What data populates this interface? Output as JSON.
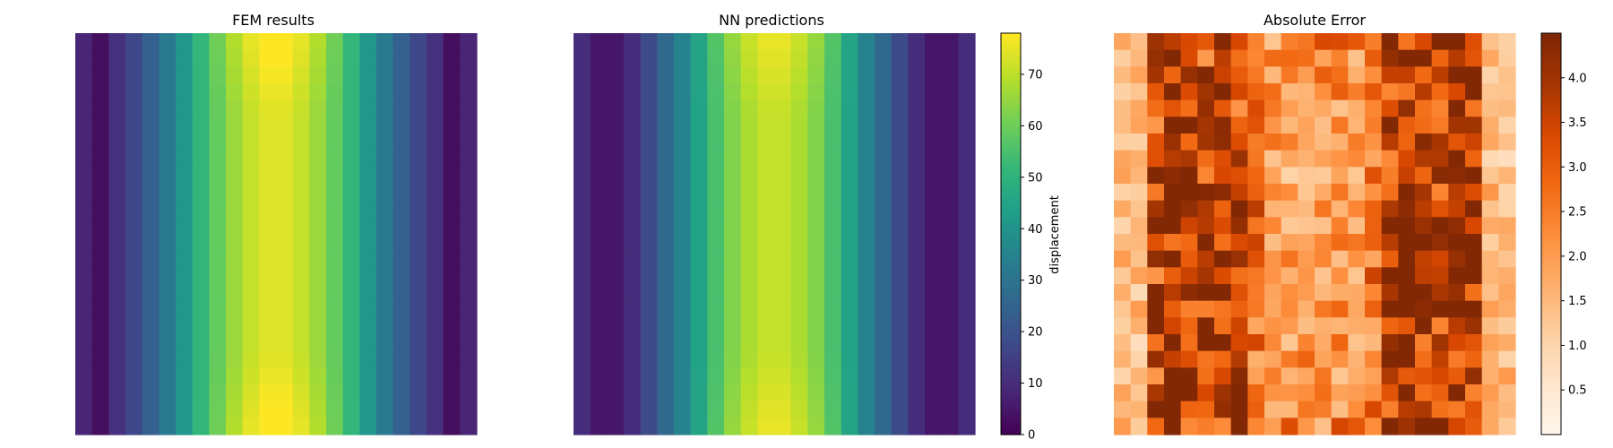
{
  "chart_data": [
    {
      "type": "heatmap",
      "title": "FEM results",
      "colormap": "viridis",
      "grid_size": [
        24,
        24
      ],
      "vmin": 0,
      "vmax": 78,
      "description": "Displacement field varying along x; columns roughly symmetric with peak at center, slight increase near top and bottom edges in the central columns."
    },
    {
      "type": "heatmap",
      "title": "NN predictions",
      "colormap": "viridis",
      "grid_size": [
        24,
        24
      ],
      "vmin": 0,
      "vmax": 78,
      "colorbar": {
        "label": "displacement",
        "ticks": [
          "0",
          "10",
          "20",
          "30",
          "40",
          "50",
          "60",
          "70"
        ]
      }
    },
    {
      "type": "heatmap",
      "title": "Absolute Error",
      "colormap": "Oranges",
      "grid_size": [
        24,
        24
      ],
      "vmin": 0,
      "vmax": 4.5,
      "colorbar": {
        "label": "",
        "ticks": [
          "0.5",
          "1.0",
          "1.5",
          "2.0",
          "2.5",
          "3.0",
          "3.5",
          "4.0"
        ]
      }
    }
  ],
  "fem_column_profile": [
    8,
    3,
    11,
    17,
    24,
    32,
    41,
    51,
    59,
    66,
    71,
    74,
    74,
    71,
    66,
    59,
    51,
    41,
    32,
    24,
    17,
    11,
    3,
    8
  ],
  "nn_column_profile": [
    10,
    5,
    5,
    10,
    18,
    26,
    35,
    45,
    55,
    63,
    68,
    71,
    71,
    68,
    63,
    55,
    45,
    35,
    26,
    18,
    10,
    5,
    5,
    10
  ],
  "colors": {
    "viridis": [
      "#440154",
      "#482878",
      "#3e4989",
      "#31688e",
      "#26828e",
      "#1f9e89",
      "#35b779",
      "#6ece58",
      "#b5de2b",
      "#fde725"
    ],
    "oranges": [
      "#fff5eb",
      "#fee6ce",
      "#fdd0a2",
      "#fdae6b",
      "#fd8d3c",
      "#f16913",
      "#d94801",
      "#a63603",
      "#7f2704"
    ]
  }
}
